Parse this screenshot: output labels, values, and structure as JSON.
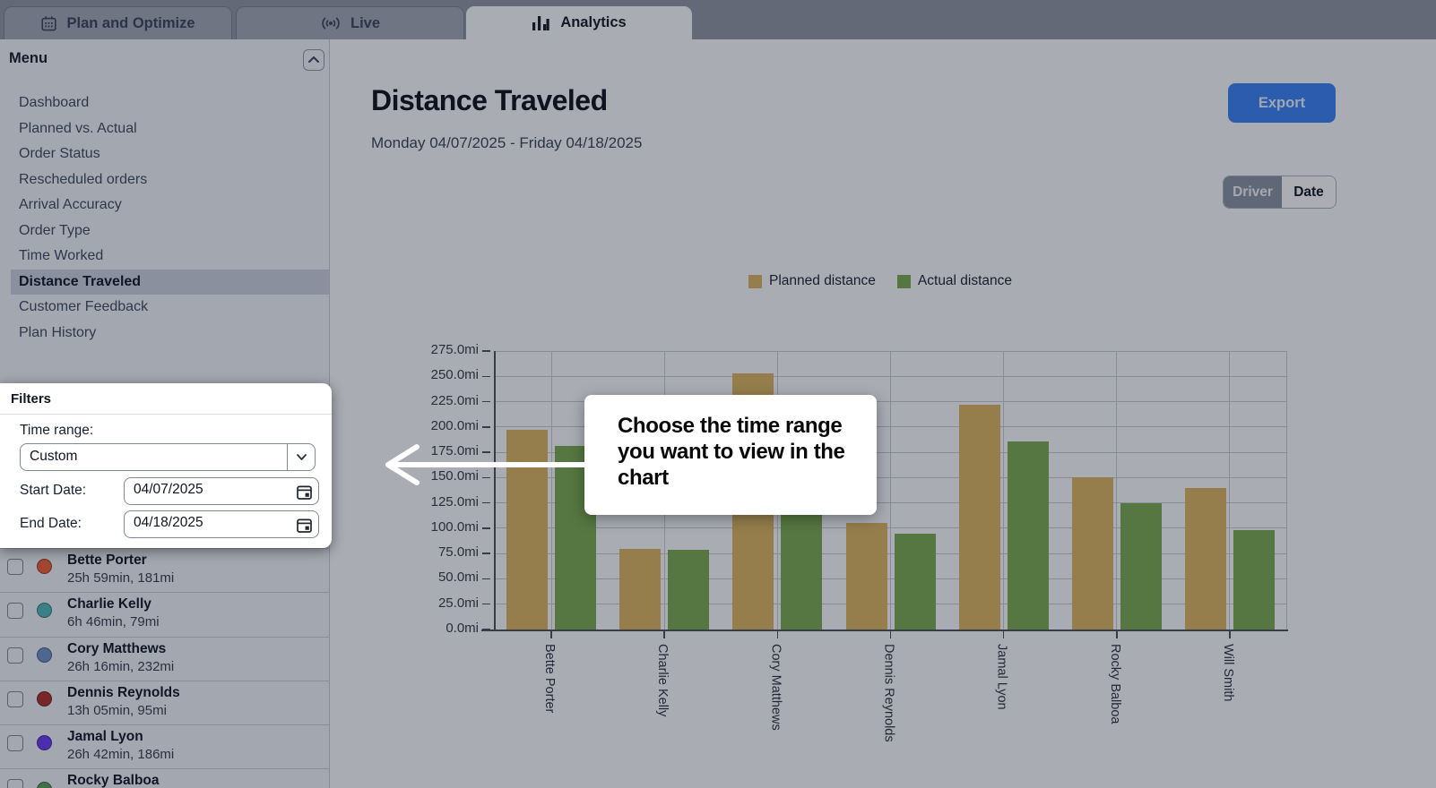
{
  "tabs": {
    "items": [
      {
        "label": "Plan and Optimize",
        "icon": "calendar-icon",
        "active": false
      },
      {
        "label": "Live",
        "icon": "live-broadcast-icon",
        "active": false
      },
      {
        "label": "Analytics",
        "icon": "bar-chart-icon",
        "active": true
      }
    ]
  },
  "sidebar": {
    "menu_title": "Menu",
    "items": [
      {
        "label": "Dashboard",
        "active": false
      },
      {
        "label": "Planned vs. Actual",
        "active": false
      },
      {
        "label": "Order Status",
        "active": false
      },
      {
        "label": "Rescheduled orders",
        "active": false
      },
      {
        "label": "Arrival Accuracy",
        "active": false
      },
      {
        "label": "Order Type",
        "active": false
      },
      {
        "label": "Time Worked",
        "active": false
      },
      {
        "label": "Distance Traveled",
        "active": true
      },
      {
        "label": "Customer Feedback",
        "active": false
      },
      {
        "label": "Plan History",
        "active": false
      }
    ]
  },
  "filters": {
    "title": "Filters",
    "time_range_label": "Time range:",
    "time_range_value": "Custom",
    "start_date_label": "Start Date:",
    "start_date_value": "04/07/2025",
    "end_date_label": "End Date:",
    "end_date_value": "04/18/2025"
  },
  "drivers": [
    {
      "name": "Bette Porter",
      "stats": "25h 59min, 181mi",
      "color": "#F06038"
    },
    {
      "name": "Charlie Kelly",
      "stats": "6h 46min, 79mi",
      "color": "#52B8B8"
    },
    {
      "name": "Cory Matthews",
      "stats": "26h 16min, 232mi",
      "color": "#6E93C8"
    },
    {
      "name": "Dennis Reynolds",
      "stats": "13h 05min, 95mi",
      "color": "#B03028"
    },
    {
      "name": "Jamal Lyon",
      "stats": "26h 42min, 186mi",
      "color": "#6B3BF5"
    },
    {
      "name": "Rocky Balboa",
      "stats": "",
      "color": "#5AA05A"
    }
  ],
  "main": {
    "title": "Distance Traveled",
    "subtitle": "Monday 04/07/2025 - Friday 04/18/2025",
    "export_label": "Export",
    "toggle": {
      "options": [
        "Driver",
        "Date"
      ],
      "selected": "Driver"
    }
  },
  "chart_data": {
    "type": "bar",
    "title": "Distance Traveled",
    "categories": [
      "Bette Porter",
      "Charlie Kelly",
      "Cory Matthews",
      "Dennis Reynolds",
      "Jamal Lyon",
      "Rocky Balboa",
      "Will Smith"
    ],
    "series": [
      {
        "name": "Planned distance",
        "color": "#DCB55E",
        "values": [
          197,
          80,
          253,
          105,
          222,
          150,
          140
        ]
      },
      {
        "name": "Actual distance",
        "color": "#7CAB4F",
        "values": [
          181,
          79,
          232,
          95,
          186,
          125,
          98
        ]
      }
    ],
    "ylim": [
      0,
      275
    ],
    "y_tick_step": 25,
    "y_unit": "mi",
    "grid": true,
    "legend_position": "top"
  },
  "tour": {
    "callout_text": "Choose the time range you want to view in the chart"
  },
  "colors": {
    "accent_blue": "#3B82F6",
    "planned": "#DCB55E",
    "actual": "#7CAB4F",
    "overlay": "rgba(17,24,39,0.35)"
  }
}
